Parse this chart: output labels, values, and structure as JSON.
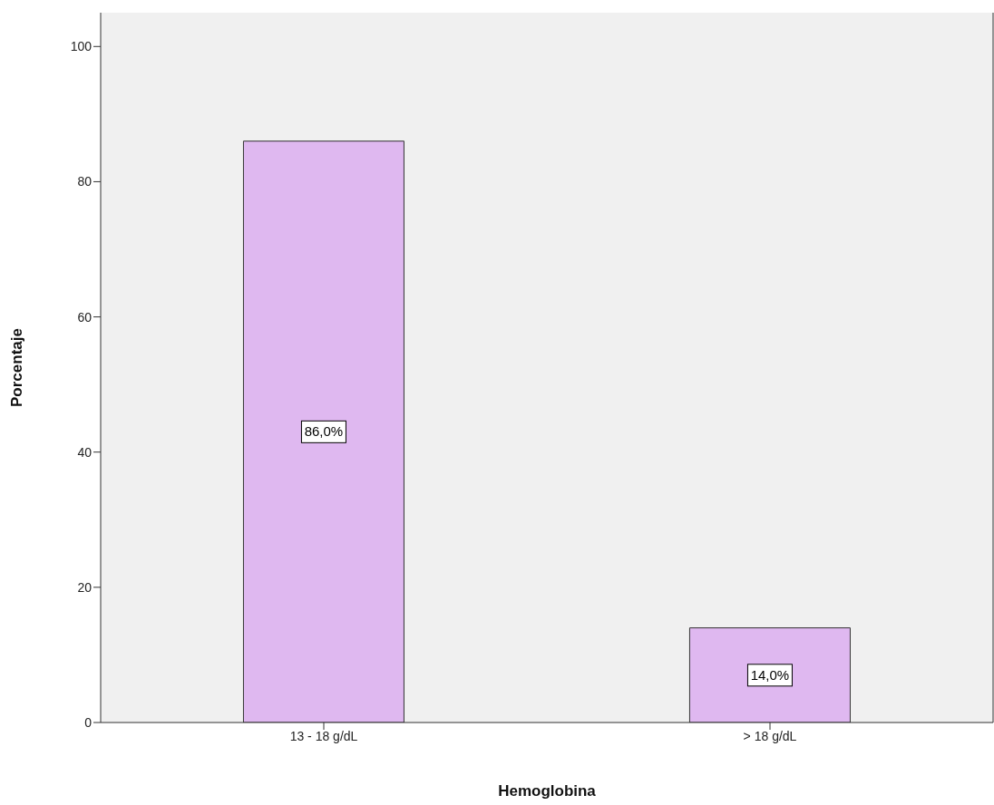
{
  "chart_data": {
    "type": "bar",
    "xlabel": "Hemoglobina",
    "ylabel": "Porcentaje",
    "categories": [
      "13 - 18 g/dL",
      "> 18 g/dL"
    ],
    "values": [
      86.0,
      14.0
    ],
    "value_labels": [
      "86,0%",
      "14,0%"
    ],
    "color": "#dfb8f0",
    "ylim": [
      0,
      105
    ],
    "yticks": [
      0,
      20,
      40,
      60,
      80,
      100
    ],
    "grid": false,
    "legend": false
  }
}
